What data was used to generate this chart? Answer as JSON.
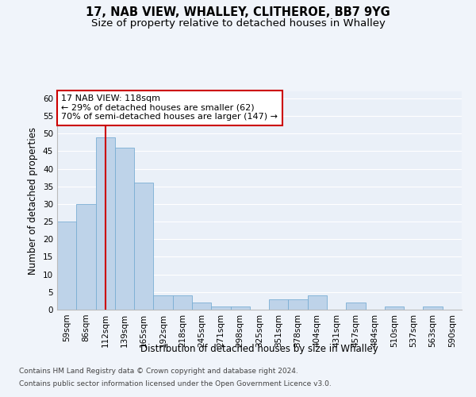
{
  "title": "17, NAB VIEW, WHALLEY, CLITHEROE, BB7 9YG",
  "subtitle": "Size of property relative to detached houses in Whalley",
  "xlabel": "Distribution of detached houses by size in Whalley",
  "ylabel": "Number of detached properties",
  "footer_line1": "Contains HM Land Registry data © Crown copyright and database right 2024.",
  "footer_line2": "Contains public sector information licensed under the Open Government Licence v3.0.",
  "bin_labels": [
    "59sqm",
    "86sqm",
    "112sqm",
    "139sqm",
    "165sqm",
    "192sqm",
    "218sqm",
    "245sqm",
    "271sqm",
    "298sqm",
    "325sqm",
    "351sqm",
    "378sqm",
    "404sqm",
    "431sqm",
    "457sqm",
    "484sqm",
    "510sqm",
    "537sqm",
    "563sqm",
    "590sqm"
  ],
  "bar_values": [
    25,
    30,
    49,
    46,
    36,
    4,
    4,
    2,
    1,
    1,
    0,
    3,
    3,
    4,
    0,
    2,
    0,
    1,
    0,
    1,
    0
  ],
  "bar_color": "#bed3e9",
  "bar_edge_color": "#7aaed4",
  "ylim": [
    0,
    62
  ],
  "yticks": [
    0,
    5,
    10,
    15,
    20,
    25,
    30,
    35,
    40,
    45,
    50,
    55,
    60
  ],
  "property_label": "17 NAB VIEW: 118sqm",
  "annotation_line1": "← 29% of detached houses are smaller (62)",
  "annotation_line2": "70% of semi-detached houses are larger (147) →",
  "vline_x_index": 2,
  "vline_color": "#cc0000",
  "annotation_box_color": "#ffffff",
  "annotation_box_edge": "#cc0000",
  "bg_color": "#eaf0f8",
  "grid_color": "#ffffff",
  "title_fontsize": 10.5,
  "subtitle_fontsize": 9.5,
  "axis_label_fontsize": 8.5,
  "tick_fontsize": 7.5,
  "annotation_fontsize": 8,
  "footer_fontsize": 6.5
}
